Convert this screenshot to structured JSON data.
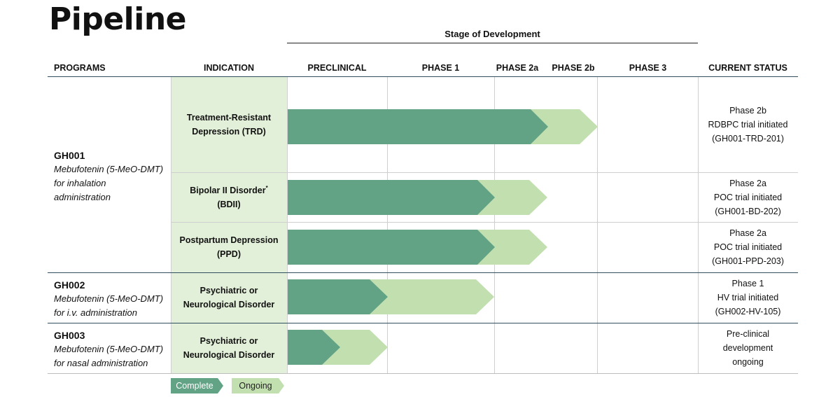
{
  "title": "Pipeline",
  "stage_of_development": "Stage of Development",
  "headers": {
    "programs": "PROGRAMS",
    "indication": "INDICATION",
    "preclinical": "PRECLINICAL",
    "phase1": "PHASE 1",
    "phase2a": "PHASE 2a",
    "phase2b": "PHASE 2b",
    "phase3": "PHASE 3",
    "current_status": "CURRENT STATUS"
  },
  "programs": [
    {
      "code": "GH001",
      "desc1": "Mebufotenin (5-MeO-DMT)",
      "desc2": "for inhalation",
      "desc3": "administration"
    },
    {
      "code": "GH002",
      "desc1": "Mebufotenin (5-MeO-DMT)",
      "desc2": "for i.v. administration"
    },
    {
      "code": "GH003",
      "desc1": "Mebufotenin (5-MeO-DMT)",
      "desc2": "for nasal administration"
    }
  ],
  "rows": [
    {
      "indication1": "Treatment-Resistant",
      "indication2": "Depression (TRD)",
      "status1": "Phase 2b",
      "status2": "RDBPC trial initiated",
      "status3": "(GH001-TRD-201)",
      "complete_through": "Phase 2a",
      "ongoing_through": "Phase 2b"
    },
    {
      "indication1": "Bipolar II Disorder",
      "indication_mark": "*",
      "indication2": "(BDII)",
      "status1": "Phase 2a",
      "status2": "POC trial initiated",
      "status3": "(GH001-BD-202)",
      "complete_through": "Phase 1",
      "ongoing_through": "Phase 2a"
    },
    {
      "indication1": "Postpartum Depression",
      "indication2": "(PPD)",
      "status1": "Phase 2a",
      "status2": "POC trial initiated",
      "status3": "(GH001-PPD-203)",
      "complete_through": "Phase 1",
      "ongoing_through": "Phase 2a"
    },
    {
      "indication1": "Psychiatric or",
      "indication2": "Neurological Disorder",
      "status1": "Phase 1",
      "status2": "HV trial initiated",
      "status3": "(GH002-HV-105)",
      "complete_through": "Preclinical",
      "ongoing_through": "Phase 1"
    },
    {
      "indication1": "Psychiatric or",
      "indication2": "Neurological Disorder",
      "status1": "Pre-clinical",
      "status2": "development",
      "status3": "ongoing",
      "complete_through": "Preclinical (partial)",
      "ongoing_through": "Preclinical"
    }
  ],
  "legend": {
    "complete": "Complete",
    "ongoing": "Ongoing"
  },
  "colors": {
    "complete": "#62a385",
    "ongoing": "#c2dfb0",
    "indication_bg": "#e3f0d9",
    "divider": "#2f4f5f"
  }
}
